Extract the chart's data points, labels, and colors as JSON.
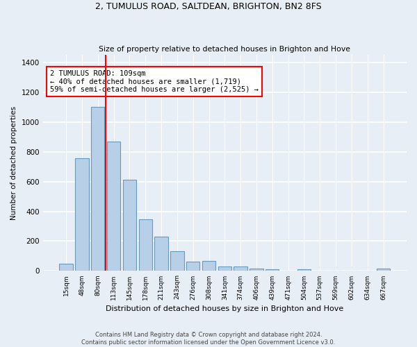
{
  "title1": "2, TUMULUS ROAD, SALTDEAN, BRIGHTON, BN2 8FS",
  "title2": "Size of property relative to detached houses in Brighton and Hove",
  "xlabel": "Distribution of detached houses by size in Brighton and Hove",
  "ylabel": "Number of detached properties",
  "categories": [
    "15sqm",
    "48sqm",
    "80sqm",
    "113sqm",
    "145sqm",
    "178sqm",
    "211sqm",
    "243sqm",
    "276sqm",
    "308sqm",
    "341sqm",
    "374sqm",
    "406sqm",
    "439sqm",
    "471sqm",
    "504sqm",
    "537sqm",
    "569sqm",
    "602sqm",
    "634sqm",
    "667sqm"
  ],
  "values": [
    50,
    755,
    1100,
    870,
    612,
    348,
    228,
    133,
    63,
    68,
    30,
    28,
    18,
    11,
    0,
    13,
    0,
    0,
    0,
    0,
    18
  ],
  "bar_color": "#b8cfe8",
  "bar_edge_color": "#6699bb",
  "property_line_label": "2 TUMULUS ROAD: 109sqm",
  "annotation_line1": "← 40% of detached houses are smaller (1,719)",
  "annotation_line2": "59% of semi-detached houses are larger (2,525) →",
  "annotation_box_color": "white",
  "annotation_box_edge_color": "red",
  "vline_color": "red",
  "vline_x_index": 2.5,
  "ylim": [
    0,
    1450
  ],
  "background_color": "#e8eef5",
  "grid_color": "white",
  "footer1": "Contains HM Land Registry data © Crown copyright and database right 2024.",
  "footer2": "Contains public sector information licensed under the Open Government Licence v3.0."
}
